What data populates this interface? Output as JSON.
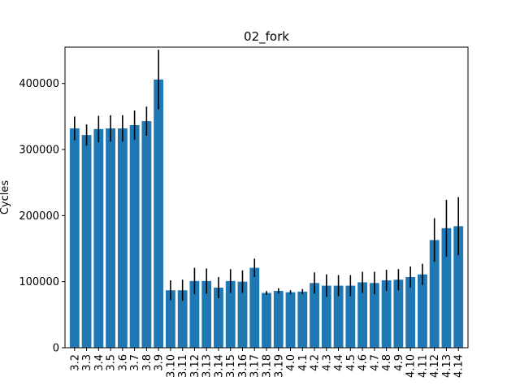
{
  "chart_data": {
    "type": "bar",
    "title": "02_fork",
    "xlabel": "",
    "ylabel": "Cycles",
    "ylim": [
      0,
      455000
    ],
    "yticks": [
      0,
      100000,
      200000,
      300000,
      400000
    ],
    "bar_color": "#1f77b4",
    "error_color": "#000000",
    "grid": false,
    "legend": "none",
    "categories": [
      "3.2",
      "3.3",
      "3.4",
      "3.5",
      "3.6",
      "3.7",
      "3.8",
      "3.9",
      "3.10",
      "3.11",
      "3.12",
      "3.13",
      "3.14",
      "3.15",
      "3.16",
      "3.17",
      "3.18",
      "3.19",
      "4.0",
      "4.1",
      "4.2",
      "4.3",
      "4.4",
      "4.5",
      "4.6",
      "4.7",
      "4.8",
      "4.9",
      "4.10",
      "4.11",
      "4.12",
      "4.13",
      "4.14"
    ],
    "values": [
      332000,
      322000,
      331000,
      332000,
      332000,
      337000,
      343000,
      406000,
      87000,
      87000,
      101000,
      101000,
      91000,
      101000,
      100000,
      121000,
      83000,
      86000,
      84000,
      85000,
      98000,
      94000,
      94000,
      94000,
      99000,
      98000,
      102000,
      103000,
      107000,
      111000,
      163000,
      181000,
      184000
    ],
    "errors": [
      18000,
      16000,
      20000,
      20000,
      20000,
      22000,
      22000,
      45000,
      15000,
      16000,
      20000,
      19000,
      16000,
      18000,
      17000,
      14000,
      3000,
      4000,
      3000,
      4000,
      16000,
      17000,
      16000,
      16000,
      16000,
      17000,
      16000,
      16000,
      16000,
      16000,
      33000,
      43000,
      44000
    ]
  }
}
